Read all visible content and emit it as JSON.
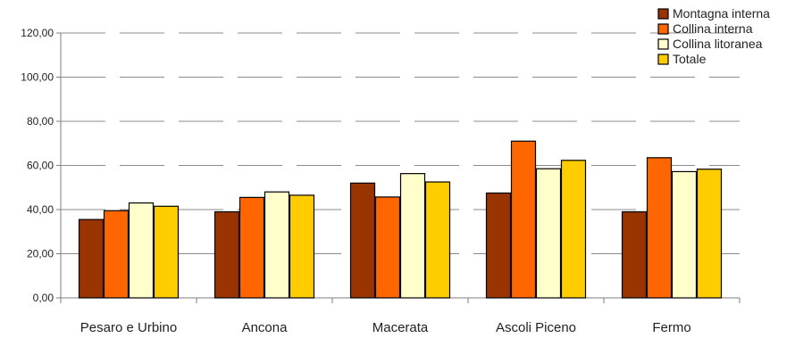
{
  "chart_data": {
    "type": "bar",
    "categories": [
      "Pesaro e Urbino",
      "Ancona",
      "Macerata",
      "Ascoli Piceno",
      "Fermo"
    ],
    "series": [
      {
        "name": "Montagna interna",
        "color": "#993300",
        "values": [
          35.5,
          39.0,
          52.0,
          47.5,
          39.0
        ]
      },
      {
        "name": "Collina interna",
        "color": "#FF6600",
        "values": [
          39.5,
          45.5,
          45.7,
          71.0,
          63.5
        ]
      },
      {
        "name": "Collina litoranea",
        "color": "#FFFFCC",
        "values": [
          43.0,
          48.0,
          56.3,
          58.5,
          57.2
        ]
      },
      {
        "name": "Totale",
        "color": "#FFCC00",
        "values": [
          41.5,
          46.5,
          52.5,
          62.3,
          58.3
        ]
      }
    ],
    "ylim": [
      0,
      120
    ],
    "yticks": [
      "0,00",
      "20,00",
      "40,00",
      "60,00",
      "80,00",
      "100,00",
      "120,00"
    ],
    "ytick_values": [
      0,
      20,
      40,
      60,
      80,
      100,
      120
    ],
    "grid": "dashed horizontal",
    "legend": "top-right",
    "title": "",
    "xlabel": "",
    "ylabel": ""
  }
}
